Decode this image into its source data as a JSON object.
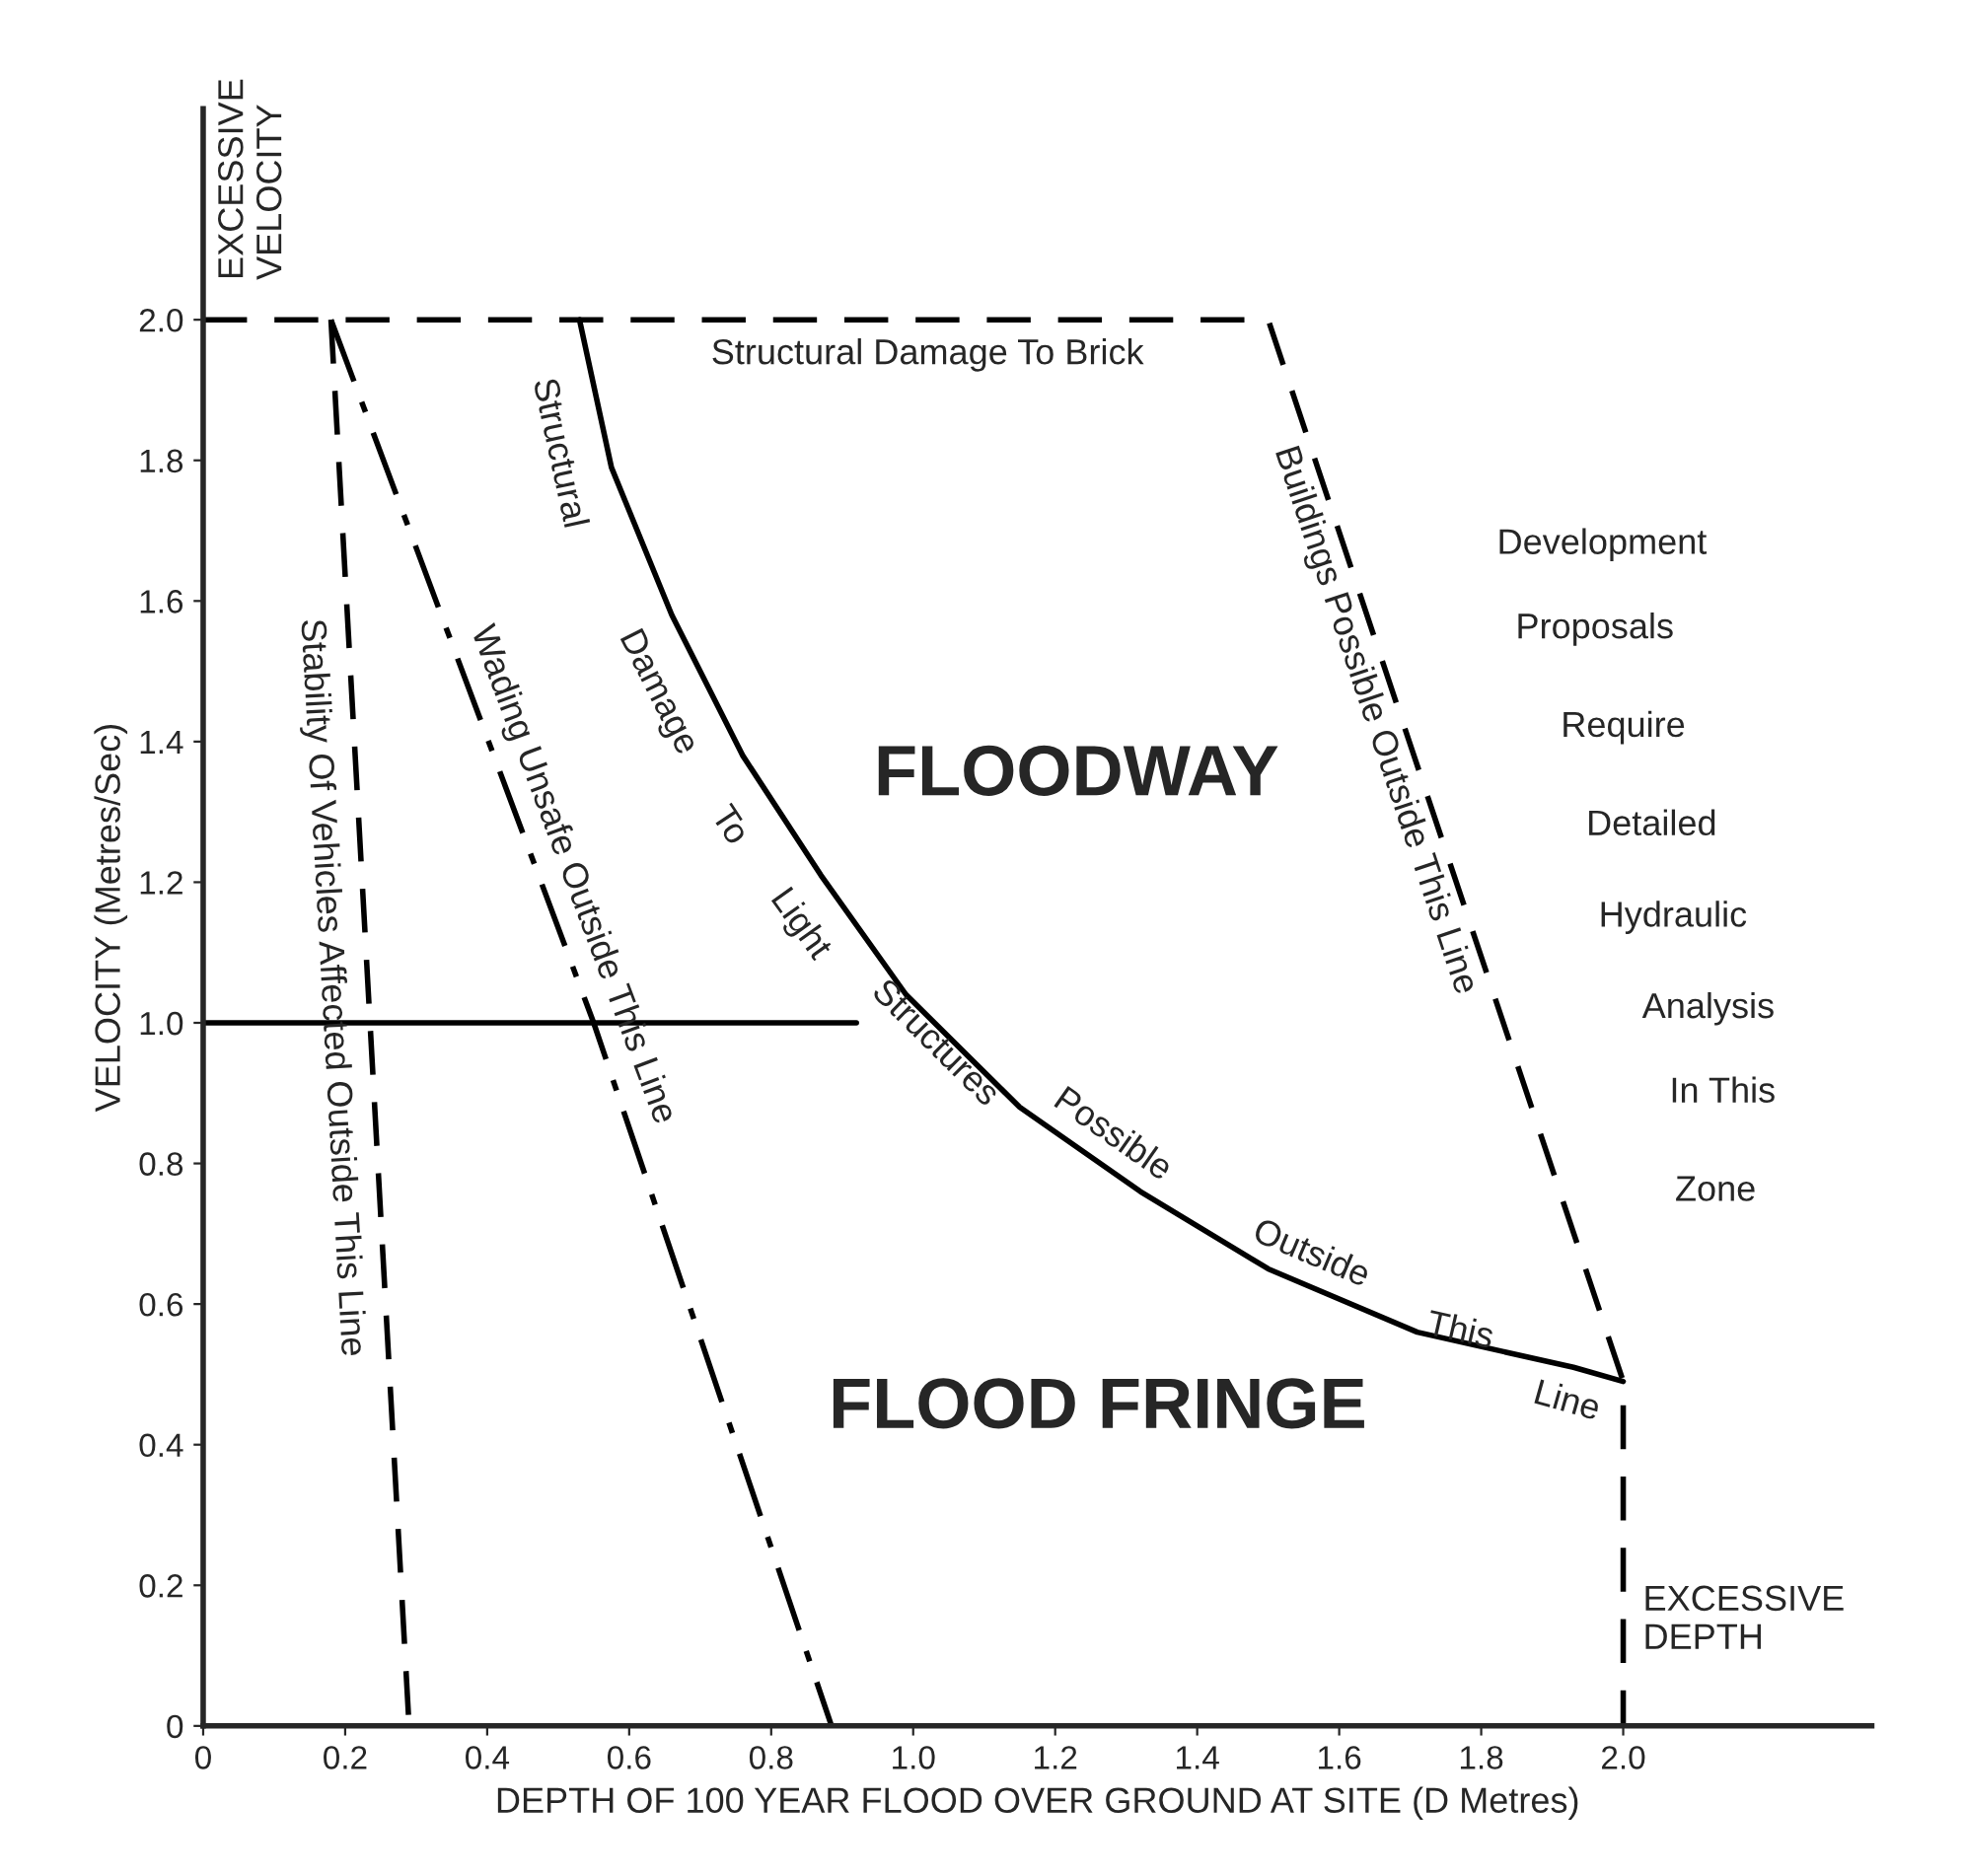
{
  "chart_data": {
    "type": "line",
    "xlabel": "DEPTH OF 100 YEAR FLOOD OVER GROUND AT SITE (D Metres)",
    "ylabel": "VELOCITY (Metres/Sec)",
    "xlim": [
      0,
      2.35
    ],
    "ylim": [
      0,
      2.3
    ],
    "xticks": [
      0,
      0.2,
      0.4,
      0.6,
      0.8,
      {
        "value": 1.0,
        "label": "1.0"
      },
      1.2,
      1.4,
      1.6,
      1.8,
      {
        "value": 2.0,
        "label": "2.0"
      }
    ],
    "yticks": [
      0,
      0.2,
      0.4,
      0.6,
      0.8,
      {
        "value": 1.0,
        "label": "1.0"
      },
      1.2,
      1.4,
      1.6,
      1.8,
      {
        "value": 2.0,
        "label": "2.0"
      }
    ],
    "grid": false,
    "legend": false,
    "marker": "none",
    "series": [
      {
        "color": "#000000",
        "line_style": "dashed",
        "x": [
          0.18,
          0.29
        ],
        "values": [
          2.0,
          0
        ]
      },
      {
        "color": "#000000",
        "line_style": "dashdot",
        "x": [
          0.18,
          0.55,
          0.885
        ],
        "values": [
          2.0,
          1.0,
          0
        ]
      },
      {
        "color": "#000000",
        "line_style": "solid",
        "x": [
          0.53,
          0.575,
          0.66,
          0.76,
          0.87,
          0.99,
          1.15,
          1.32,
          1.5,
          1.71,
          1.93,
          2.0
        ],
        "values": [
          2.0,
          1.79,
          1.58,
          1.38,
          1.21,
          1.04,
          0.88,
          0.76,
          0.65,
          0.56,
          0.51,
          0.49
        ]
      },
      {
        "color": "#000000",
        "line_style": "dashed",
        "x": [
          0,
          1.5,
          2.0,
          2.0
        ],
        "values": [
          2.0,
          2.0,
          0.49,
          0
        ]
      },
      {
        "color": "#000000",
        "line_style": "solid",
        "x": [
          0,
          0.92
        ],
        "values": [
          1.0,
          1.0
        ]
      }
    ],
    "annotations": [
      "EXCESSIVE\nVELOCITY",
      "Structural Damage To Brick",
      "Stability Of Vehicles Affected Outside This Line",
      "Wading Unsafe Outside This Line",
      "Structural",
      "Damage",
      "To",
      "Light",
      "Structures",
      "Possible",
      "Outside",
      "This",
      "Line",
      "Buildings Possible Outside This Line",
      "FLOODWAY",
      "FLOOD FRINGE",
      "Development",
      "Proposals",
      "Require",
      "Detailed",
      "Hydraulic",
      "Analysis",
      "In This",
      "Zone",
      "EXCESSIVE\nDEPTH"
    ]
  }
}
